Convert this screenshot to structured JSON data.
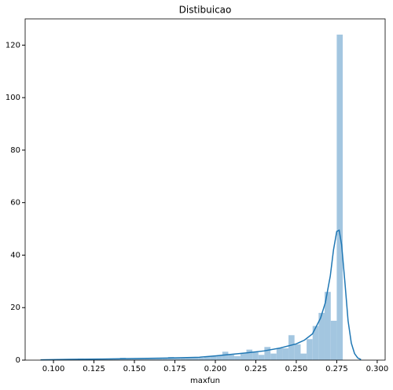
{
  "chart_data": {
    "type": "histogram",
    "title": "Distibuicao",
    "x_label": "maxfun",
    "bins": [
      0.0927,
      0.0964,
      0.1001,
      0.1039,
      0.1076,
      0.1113,
      0.115,
      0.1187,
      0.1225,
      0.1262,
      0.1299,
      0.1336,
      0.1373,
      0.1411,
      0.1448,
      0.1485,
      0.1522,
      0.1559,
      0.1597,
      0.1634,
      0.1671,
      0.1708,
      0.1745,
      0.1783,
      0.182,
      0.1857,
      0.1894,
      0.1931,
      0.1969,
      0.2006,
      0.2043,
      0.208,
      0.2117,
      0.2155,
      0.2192,
      0.2229,
      0.2266,
      0.2303,
      0.2341,
      0.2378,
      0.2415,
      0.2452,
      0.2489,
      0.2527,
      0.2564,
      0.2601,
      0.2638,
      0.2675,
      0.2713,
      0.275,
      0.2787
    ],
    "values": [
      0.3,
      0,
      0,
      0.3,
      0.3,
      0.3,
      0.6,
      0.3,
      0.3,
      0.3,
      0.6,
      0.3,
      0.6,
      0.9,
      0.6,
      0.6,
      0.6,
      0.6,
      0.9,
      0.9,
      0.9,
      1.2,
      0.9,
      0.9,
      1.2,
      0.9,
      0.9,
      1.2,
      1.5,
      1.8,
      3.2,
      2,
      1.5,
      2.5,
      4,
      3,
      2,
      5,
      2.5,
      4.5,
      4.5,
      9.5,
      6,
      2.5,
      8,
      13,
      18,
      26,
      15,
      124
    ],
    "color": "#a3c6e0",
    "kde": {
      "color": "#1f77b4",
      "x": [
        0.092,
        0.11,
        0.13,
        0.15,
        0.17,
        0.19,
        0.2,
        0.21,
        0.22,
        0.23,
        0.24,
        0.25,
        0.255,
        0.26,
        0.265,
        0.268,
        0.271,
        0.273,
        0.275,
        0.2765,
        0.278,
        0.28,
        0.282,
        0.284,
        0.286,
        0.288,
        0.29
      ],
      "values": [
        0.1,
        0.3,
        0.4,
        0.6,
        0.8,
        1.1,
        1.6,
        2.2,
        2.8,
        3.5,
        4.6,
        6.2,
        7.6,
        10,
        16,
        22,
        32,
        42,
        49,
        49.5,
        44,
        30,
        15,
        6.5,
        2.5,
        0.8,
        0.2
      ]
    },
    "xlim": [
      0.0825,
      0.3049
    ],
    "ylim": [
      0,
      130
    ],
    "xticks": [
      {
        "value": 0.1,
        "label": "0.100"
      },
      {
        "value": 0.125,
        "label": "0.125"
      },
      {
        "value": 0.15,
        "label": "0.150"
      },
      {
        "value": 0.175,
        "label": "0.175"
      },
      {
        "value": 0.2,
        "label": "0.200"
      },
      {
        "value": 0.225,
        "label": "0.225"
      },
      {
        "value": 0.25,
        "label": "0.250"
      },
      {
        "value": 0.275,
        "label": "0.275"
      },
      {
        "value": 0.3,
        "label": "0.300"
      }
    ],
    "yticks": [
      0,
      20,
      40,
      60,
      80,
      100,
      120
    ]
  }
}
